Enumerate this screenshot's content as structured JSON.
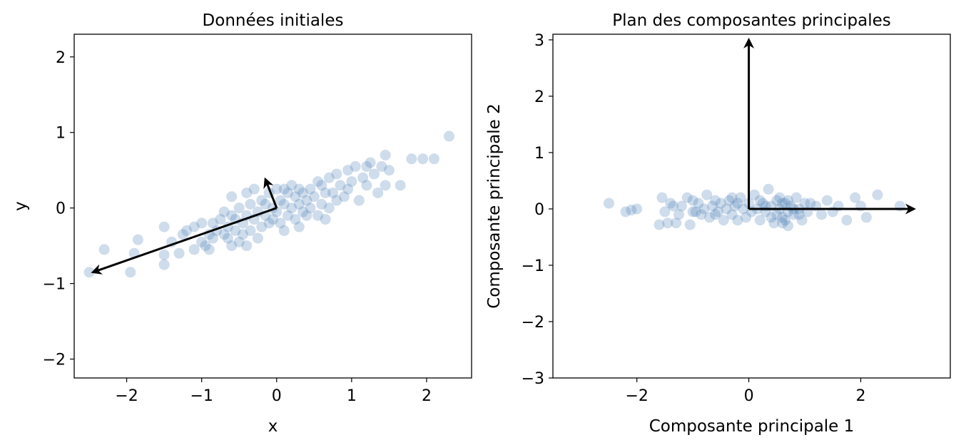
{
  "chart_data": [
    {
      "type": "scatter",
      "title": "Données initiales",
      "xlabel": "x",
      "ylabel": "y",
      "xlim": [
        -2.7,
        2.6
      ],
      "ylim": [
        -2.25,
        2.3
      ],
      "xticks": [
        -2,
        -1,
        0,
        1,
        2
      ],
      "yticks": [
        -2,
        -1,
        0,
        1,
        2
      ],
      "xtick_labels": [
        "−2",
        "−1",
        "0",
        "1",
        "2"
      ],
      "ytick_labels": [
        "−2",
        "−1",
        "0",
        "1",
        "2"
      ],
      "point_color": "#4f81b8",
      "point_opacity": 0.28,
      "points": [
        [
          -2.5,
          -0.85
        ],
        [
          -2.3,
          -0.55
        ],
        [
          -1.95,
          -0.85
        ],
        [
          -1.9,
          -0.6
        ],
        [
          -1.85,
          -0.42
        ],
        [
          -1.5,
          -0.75
        ],
        [
          -1.5,
          -0.62
        ],
        [
          -1.5,
          -0.25
        ],
        [
          -1.4,
          -0.45
        ],
        [
          -1.3,
          -0.6
        ],
        [
          -1.25,
          -0.35
        ],
        [
          -1.2,
          -0.3
        ],
        [
          -1.1,
          -0.55
        ],
        [
          -1.1,
          -0.25
        ],
        [
          -1.0,
          -0.45
        ],
        [
          -1.0,
          -0.2
        ],
        [
          -0.95,
          -0.5
        ],
        [
          -0.9,
          -0.35
        ],
        [
          -0.85,
          -0.2
        ],
        [
          -0.85,
          -0.4
        ],
        [
          -0.8,
          -0.3
        ],
        [
          -0.75,
          -0.15
        ],
        [
          -0.7,
          -0.35
        ],
        [
          -0.7,
          -0.05
        ],
        [
          -0.65,
          -0.25
        ],
        [
          -0.65,
          -0.4
        ],
        [
          -0.6,
          -0.1
        ],
        [
          -0.6,
          -0.5
        ],
        [
          -0.55,
          -0.3
        ],
        [
          -0.55,
          -0.15
        ],
        [
          -0.5,
          -0.45
        ],
        [
          -0.5,
          0.0
        ],
        [
          -0.45,
          -0.2
        ],
        [
          -0.45,
          -0.35
        ],
        [
          -0.4,
          -0.1
        ],
        [
          -0.4,
          -0.5
        ],
        [
          -0.35,
          0.05
        ],
        [
          -0.35,
          -0.3
        ],
        [
          -0.3,
          -0.15
        ],
        [
          -0.3,
          0.25
        ],
        [
          -0.25,
          -0.05
        ],
        [
          -0.25,
          -0.4
        ],
        [
          -0.2,
          0.1
        ],
        [
          -0.2,
          -0.25
        ],
        [
          -0.15,
          0.05
        ],
        [
          -0.15,
          -0.1
        ],
        [
          -0.1,
          0.2
        ],
        [
          -0.1,
          -0.2
        ],
        [
          -0.05,
          0.0
        ],
        [
          -0.05,
          -0.15
        ],
        [
          0.0,
          0.25
        ],
        [
          0.0,
          -0.05
        ],
        [
          0.05,
          0.1
        ],
        [
          0.05,
          -0.2
        ],
        [
          0.1,
          0.05
        ],
        [
          0.1,
          0.25
        ],
        [
          0.15,
          -0.1
        ],
        [
          0.15,
          0.2
        ],
        [
          0.2,
          0.0
        ],
        [
          0.2,
          0.3
        ],
        [
          0.25,
          0.15
        ],
        [
          0.25,
          -0.15
        ],
        [
          0.3,
          0.05
        ],
        [
          0.3,
          0.25
        ],
        [
          0.35,
          -0.05
        ],
        [
          0.35,
          0.2
        ],
        [
          0.4,
          0.1
        ],
        [
          0.4,
          -0.1
        ],
        [
          0.45,
          0.25
        ],
        [
          0.45,
          0.0
        ],
        [
          0.5,
          0.15
        ],
        [
          0.55,
          -0.1
        ],
        [
          0.6,
          0.3
        ],
        [
          0.6,
          0.05
        ],
        [
          0.65,
          0.2
        ],
        [
          0.7,
          0.0
        ],
        [
          0.7,
          0.4
        ],
        [
          0.75,
          0.2
        ],
        [
          0.8,
          0.1
        ],
        [
          0.8,
          0.45
        ],
        [
          0.85,
          0.3
        ],
        [
          0.9,
          0.15
        ],
        [
          0.95,
          0.5
        ],
        [
          0.95,
          0.25
        ],
        [
          1.0,
          0.35
        ],
        [
          1.05,
          0.55
        ],
        [
          1.1,
          0.1
        ],
        [
          1.15,
          0.4
        ],
        [
          1.2,
          0.3
        ],
        [
          1.25,
          0.6
        ],
        [
          1.3,
          0.45
        ],
        [
          1.35,
          0.2
        ],
        [
          1.4,
          0.55
        ],
        [
          1.45,
          0.3
        ],
        [
          1.45,
          0.7
        ],
        [
          1.5,
          0.5
        ],
        [
          1.65,
          0.3
        ],
        [
          1.8,
          0.65
        ],
        [
          1.95,
          0.65
        ],
        [
          2.1,
          0.65
        ],
        [
          2.3,
          0.95
        ],
        [
          -0.6,
          0.15
        ],
        [
          0.55,
          0.35
        ],
        [
          0.3,
          -0.25
        ],
        [
          -0.9,
          -0.55
        ],
        [
          1.2,
          0.55
        ],
        [
          0.1,
          -0.3
        ],
        [
          -0.4,
          0.2
        ],
        [
          0.65,
          -0.15
        ]
      ],
      "vectors": [
        {
          "from": [
            0,
            0
          ],
          "to": [
            -2.45,
            -0.85
          ]
        },
        {
          "from": [
            0,
            0
          ],
          "to": [
            -0.15,
            0.38
          ]
        }
      ]
    },
    {
      "type": "scatter",
      "title": "Plan des composantes principales",
      "xlabel": "Composante principale 1",
      "ylabel": "Composante principale 2",
      "xlim": [
        -3.5,
        3.6
      ],
      "ylim": [
        -3.0,
        3.1
      ],
      "xticks": [
        -2,
        0,
        2
      ],
      "yticks": [
        -3,
        -2,
        -1,
        0,
        1,
        2,
        3
      ],
      "xtick_labels": [
        "−2",
        "0",
        "2"
      ],
      "ytick_labels": [
        "−3",
        "−2",
        "−1",
        "0",
        "1",
        "2",
        "3"
      ],
      "point_color": "#4f81b8",
      "point_opacity": 0.28,
      "points": [
        [
          -2.5,
          0.1
        ],
        [
          -2.2,
          -0.05
        ],
        [
          -2.1,
          -0.02
        ],
        [
          -2.0,
          0.0
        ],
        [
          -1.6,
          -0.28
        ],
        [
          -1.55,
          0.2
        ],
        [
          -1.5,
          -0.05
        ],
        [
          -1.45,
          -0.25
        ],
        [
          -1.4,
          0.1
        ],
        [
          -1.35,
          0.05
        ],
        [
          -1.3,
          -0.25
        ],
        [
          -1.25,
          -0.1
        ],
        [
          -1.2,
          0.05
        ],
        [
          -1.1,
          0.2
        ],
        [
          -1.05,
          -0.28
        ],
        [
          -1.0,
          0.15
        ],
        [
          -0.95,
          -0.05
        ],
        [
          -0.9,
          0.1
        ],
        [
          -0.85,
          -0.1
        ],
        [
          -0.8,
          0.0
        ],
        [
          -0.75,
          0.25
        ],
        [
          -0.7,
          -0.15
        ],
        [
          -0.65,
          0.05
        ],
        [
          -0.6,
          0.15
        ],
        [
          -0.55,
          -0.05
        ],
        [
          -0.5,
          0.1
        ],
        [
          -0.45,
          -0.2
        ],
        [
          -0.4,
          0.0
        ],
        [
          -0.35,
          0.15
        ],
        [
          -0.3,
          -0.1
        ],
        [
          -0.25,
          0.05
        ],
        [
          -0.2,
          -0.2
        ],
        [
          -0.15,
          0.2
        ],
        [
          -0.1,
          0.0
        ],
        [
          -0.05,
          -0.15
        ],
        [
          0.0,
          0.1
        ],
        [
          0.05,
          -0.05
        ],
        [
          0.1,
          0.25
        ],
        [
          0.15,
          0.0
        ],
        [
          0.2,
          -0.2
        ],
        [
          0.25,
          0.1
        ],
        [
          0.3,
          -0.05
        ],
        [
          0.35,
          0.35
        ],
        [
          0.4,
          0.05
        ],
        [
          0.45,
          -0.25
        ],
        [
          0.5,
          0.15
        ],
        [
          0.55,
          0.0
        ],
        [
          0.6,
          -0.15
        ],
        [
          0.65,
          0.1
        ],
        [
          0.7,
          -0.3
        ],
        [
          0.75,
          0.05
        ],
        [
          0.8,
          -0.1
        ],
        [
          0.85,
          0.2
        ],
        [
          0.9,
          0.0
        ],
        [
          0.95,
          -0.2
        ],
        [
          1.0,
          0.1
        ],
        [
          1.05,
          -0.05
        ],
        [
          1.1,
          0.1
        ],
        [
          1.2,
          0.05
        ],
        [
          1.3,
          -0.1
        ],
        [
          1.4,
          0.15
        ],
        [
          1.5,
          -0.05
        ],
        [
          1.6,
          0.05
        ],
        [
          1.75,
          -0.2
        ],
        [
          1.9,
          0.2
        ],
        [
          2.0,
          0.05
        ],
        [
          2.1,
          -0.15
        ],
        [
          2.3,
          0.25
        ],
        [
          2.7,
          0.05
        ],
        [
          0.6,
          0.1
        ],
        [
          0.7,
          0.15
        ],
        [
          0.5,
          -0.1
        ],
        [
          0.8,
          0.0
        ],
        [
          0.65,
          -0.2
        ],
        [
          -0.3,
          0.2
        ],
        [
          0.4,
          -0.15
        ],
        [
          0.2,
          0.15
        ],
        [
          -0.6,
          -0.1
        ],
        [
          0.9,
          -0.1
        ],
        [
          0.55,
          0.2
        ],
        [
          0.7,
          -0.05
        ],
        [
          -1.0,
          -0.05
        ],
        [
          0.3,
          0.05
        ],
        [
          -0.2,
          0.1
        ],
        [
          0.6,
          -0.25
        ]
      ],
      "vectors": [
        {
          "from": [
            0,
            0
          ],
          "to": [
            2.95,
            0.0
          ]
        },
        {
          "from": [
            0,
            0
          ],
          "to": [
            0.0,
            3.0
          ]
        }
      ]
    }
  ]
}
